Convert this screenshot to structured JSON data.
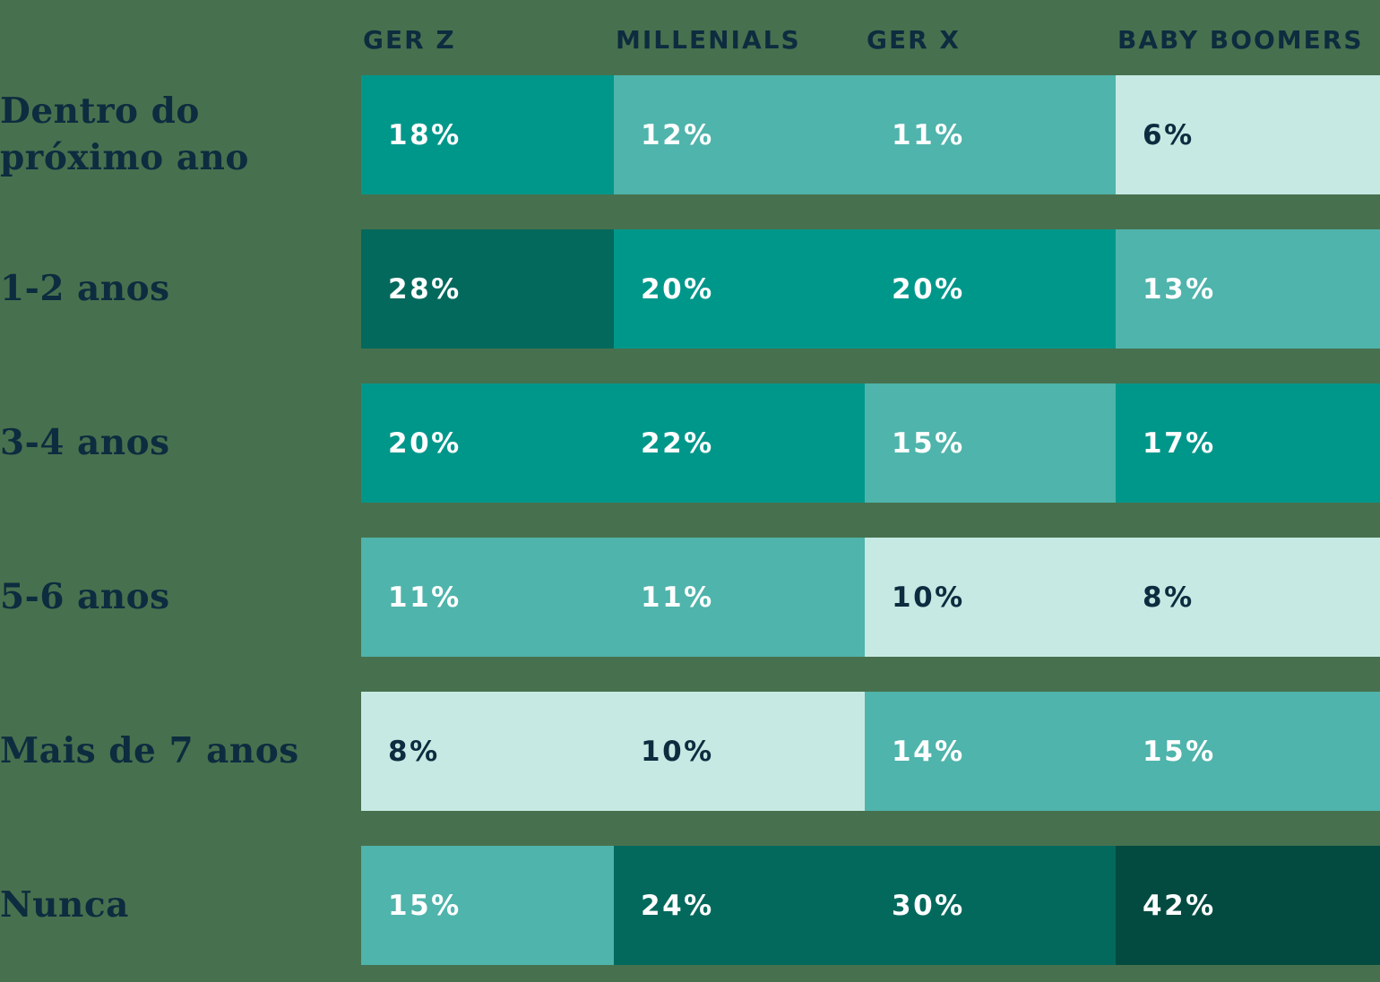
{
  "colors": {
    "background": "#47714E",
    "navy_text": "#0D2C3F",
    "white_text": "#FFFFFF"
  },
  "palette": {
    "lightest": "#C7E9E3",
    "medium": "#4FB4AB",
    "teal": "#00978B",
    "dark": "#03695C",
    "darkest": "#034B41"
  },
  "chart_data": {
    "type": "heatmap",
    "title": "",
    "legend": "none",
    "unit": "%",
    "columns": [
      "GER Z",
      "MILLENIALS",
      "GER X",
      "BABY BOOMERS"
    ],
    "row_labels": [
      "Dentro do\npróximo ano",
      "1-2 anos",
      "3-4 anos",
      "5-6 anos",
      "Mais de 7 anos",
      "Nunca"
    ],
    "values": [
      [
        18,
        12,
        11,
        6
      ],
      [
        28,
        20,
        20,
        13
      ],
      [
        20,
        22,
        15,
        17
      ],
      [
        11,
        11,
        10,
        8
      ],
      [
        8,
        10,
        14,
        15
      ],
      [
        15,
        24,
        30,
        42
      ]
    ],
    "rows": [
      {
        "label": "Dentro do\npróximo ano",
        "cells": [
          {
            "value": "18%",
            "level": "teal"
          },
          {
            "value": "12%",
            "level": "medium"
          },
          {
            "value": "11%",
            "level": "medium"
          },
          {
            "value": "6%",
            "level": "lightest"
          }
        ]
      },
      {
        "label": "1-2 anos",
        "cells": [
          {
            "value": "28%",
            "level": "dark"
          },
          {
            "value": "20%",
            "level": "teal"
          },
          {
            "value": "20%",
            "level": "teal"
          },
          {
            "value": "13%",
            "level": "medium"
          }
        ]
      },
      {
        "label": "3-4 anos",
        "cells": [
          {
            "value": "20%",
            "level": "teal"
          },
          {
            "value": "22%",
            "level": "teal"
          },
          {
            "value": "15%",
            "level": "medium"
          },
          {
            "value": "17%",
            "level": "teal"
          }
        ]
      },
      {
        "label": "5-6 anos",
        "cells": [
          {
            "value": "11%",
            "level": "medium"
          },
          {
            "value": "11%",
            "level": "medium"
          },
          {
            "value": "10%",
            "level": "lightest"
          },
          {
            "value": "8%",
            "level": "lightest"
          }
        ]
      },
      {
        "label": "Mais de 7 anos",
        "cells": [
          {
            "value": "8%",
            "level": "lightest"
          },
          {
            "value": "10%",
            "level": "lightest"
          },
          {
            "value": "14%",
            "level": "medium"
          },
          {
            "value": "15%",
            "level": "medium"
          }
        ]
      },
      {
        "label": "Nunca",
        "cells": [
          {
            "value": "15%",
            "level": "medium"
          },
          {
            "value": "24%",
            "level": "dark"
          },
          {
            "value": "30%",
            "level": "dark"
          },
          {
            "value": "42%",
            "level": "darkest"
          }
        ]
      }
    ]
  }
}
